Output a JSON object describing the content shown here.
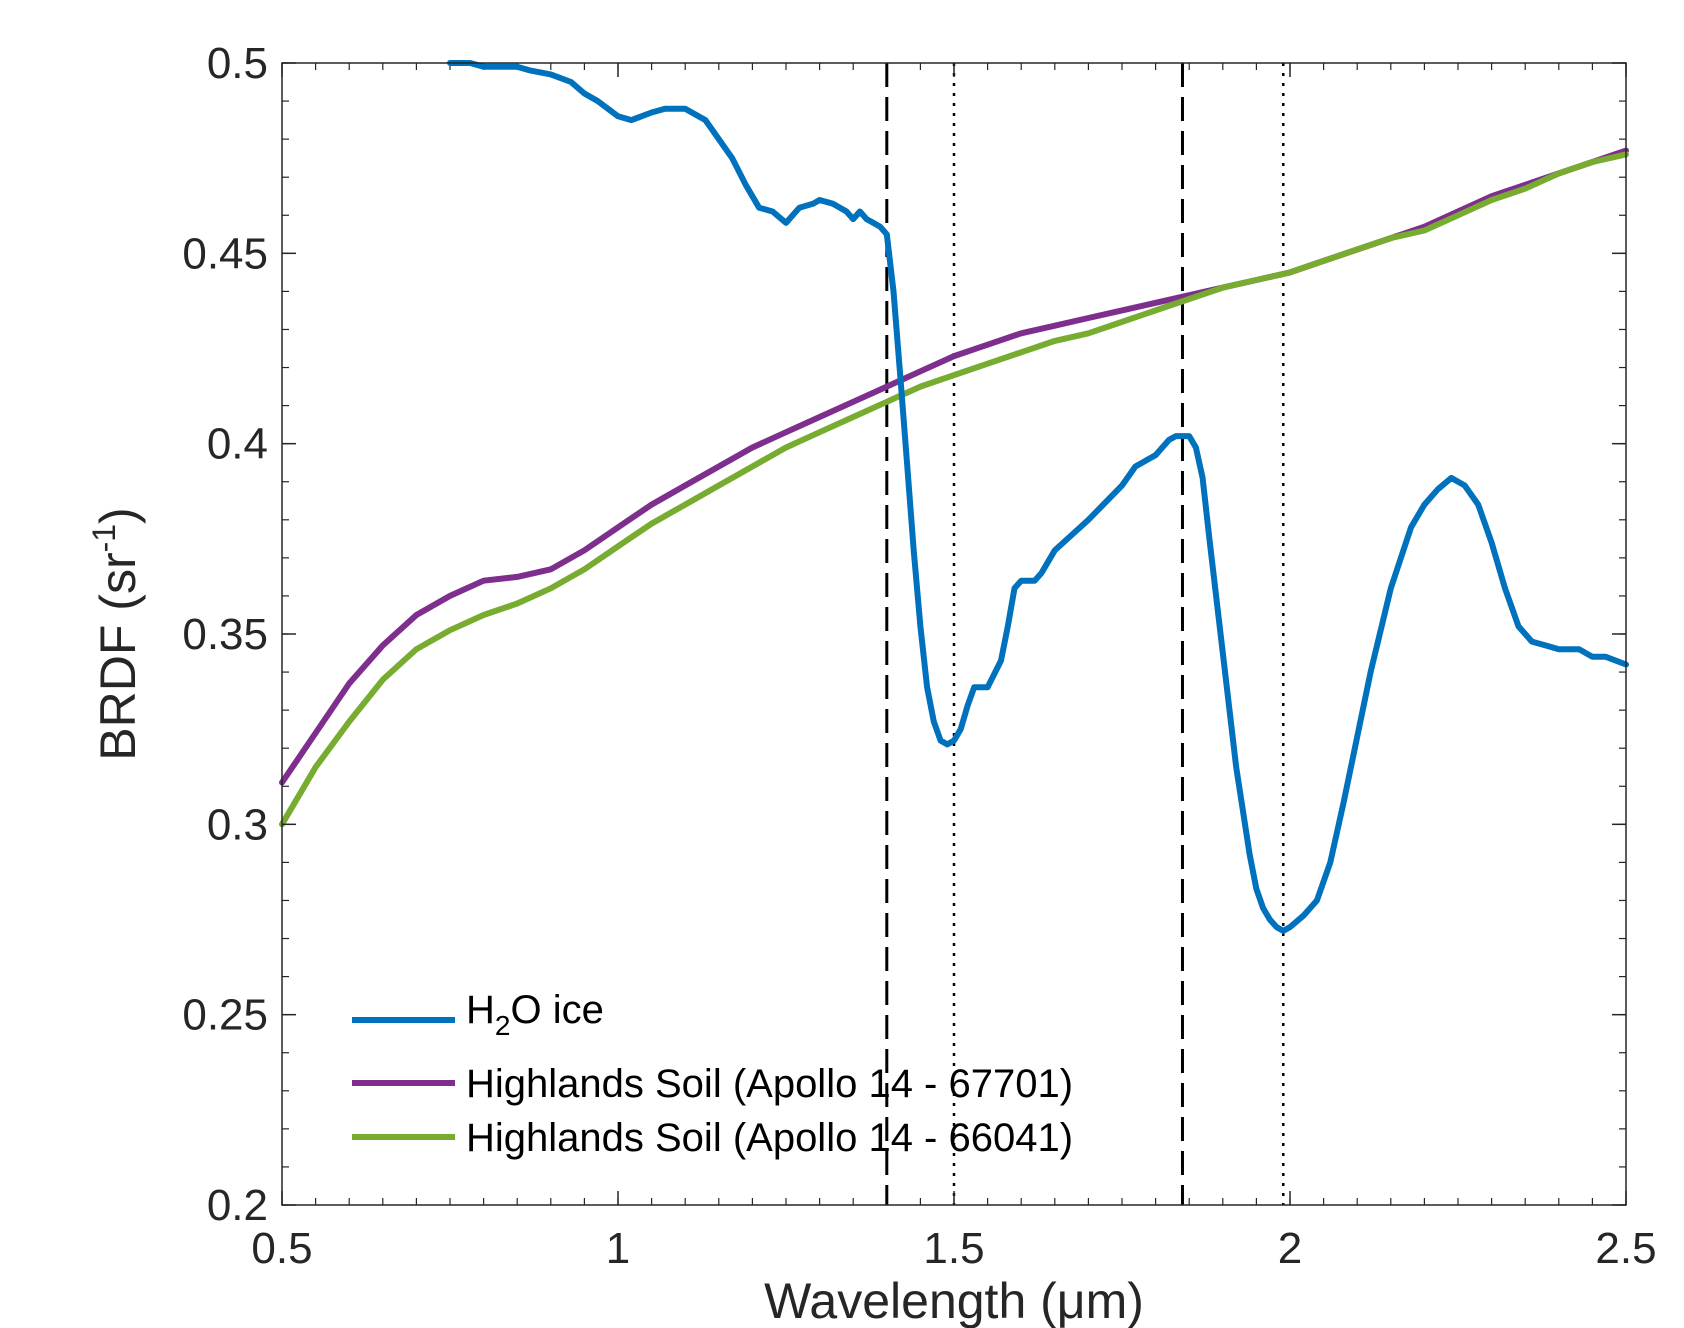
{
  "chart_data": {
    "type": "line",
    "xlabel": "Wavelength (μm)",
    "ylabel_main": "BRDF (sr",
    "ylabel_sup": "-1",
    "ylabel_close": ")",
    "xlim": [
      0.5,
      2.5
    ],
    "ylim": [
      0.2,
      0.5
    ],
    "xticks": [
      0.5,
      1,
      1.5,
      2,
      2.5
    ],
    "xtick_labels": [
      "0.5",
      "1",
      "1.5",
      "2",
      "2.5"
    ],
    "yticks": [
      0.2,
      0.25,
      0.3,
      0.35,
      0.4,
      0.45,
      0.5
    ],
    "ytick_labels": [
      "0.2",
      "0.25",
      "0.3",
      "0.35",
      "0.4",
      "0.45",
      "0.5"
    ],
    "grid": false,
    "legend_position": "bottom-left",
    "vlines": [
      {
        "x": 1.4,
        "style": "dashed"
      },
      {
        "x": 1.5,
        "style": "dotted"
      },
      {
        "x": 1.84,
        "style": "dashed"
      },
      {
        "x": 1.99,
        "style": "dotted"
      }
    ],
    "series": [
      {
        "name": "H2O ice",
        "legend_main": "H",
        "legend_sub": "2",
        "legend_rest": "O ice",
        "color": "#0072BD",
        "x": [
          0.75,
          0.78,
          0.8,
          0.85,
          0.87,
          0.9,
          0.93,
          0.95,
          0.97,
          1.0,
          1.02,
          1.05,
          1.07,
          1.1,
          1.13,
          1.15,
          1.17,
          1.19,
          1.21,
          1.23,
          1.25,
          1.27,
          1.29,
          1.3,
          1.32,
          1.34,
          1.35,
          1.36,
          1.37,
          1.38,
          1.39,
          1.4,
          1.41,
          1.42,
          1.43,
          1.44,
          1.45,
          1.46,
          1.47,
          1.48,
          1.49,
          1.5,
          1.51,
          1.52,
          1.53,
          1.55,
          1.57,
          1.58,
          1.59,
          1.6,
          1.62,
          1.63,
          1.64,
          1.65,
          1.7,
          1.75,
          1.77,
          1.8,
          1.82,
          1.83,
          1.84,
          1.85,
          1.86,
          1.87,
          1.88,
          1.9,
          1.92,
          1.94,
          1.95,
          1.96,
          1.97,
          1.98,
          1.99,
          2.0,
          2.02,
          2.04,
          2.06,
          2.08,
          2.1,
          2.12,
          2.15,
          2.18,
          2.2,
          2.22,
          2.24,
          2.25,
          2.26,
          2.28,
          2.3,
          2.32,
          2.34,
          2.36,
          2.38,
          2.4,
          2.43,
          2.45,
          2.47,
          2.5
        ],
        "values": [
          0.5,
          0.5,
          0.499,
          0.499,
          0.498,
          0.497,
          0.495,
          0.492,
          0.49,
          0.486,
          0.485,
          0.487,
          0.488,
          0.488,
          0.485,
          0.48,
          0.475,
          0.468,
          0.462,
          0.461,
          0.458,
          0.462,
          0.463,
          0.464,
          0.463,
          0.461,
          0.459,
          0.461,
          0.459,
          0.458,
          0.457,
          0.455,
          0.44,
          0.418,
          0.395,
          0.372,
          0.352,
          0.336,
          0.327,
          0.322,
          0.321,
          0.322,
          0.325,
          0.331,
          0.336,
          0.336,
          0.343,
          0.352,
          0.362,
          0.364,
          0.364,
          0.366,
          0.369,
          0.372,
          0.38,
          0.389,
          0.394,
          0.397,
          0.401,
          0.402,
          0.402,
          0.402,
          0.399,
          0.391,
          0.375,
          0.345,
          0.315,
          0.292,
          0.283,
          0.278,
          0.275,
          0.273,
          0.272,
          0.273,
          0.276,
          0.28,
          0.29,
          0.306,
          0.323,
          0.34,
          0.362,
          0.378,
          0.384,
          0.388,
          0.391,
          0.39,
          0.389,
          0.384,
          0.374,
          0.362,
          0.352,
          0.348,
          0.347,
          0.346,
          0.346,
          0.344,
          0.344,
          0.342
        ]
      },
      {
        "name": "Highlands Soil (Apollo 14 - 67701)",
        "color": "#7E2F8E",
        "x": [
          0.5,
          0.55,
          0.6,
          0.65,
          0.7,
          0.75,
          0.8,
          0.85,
          0.9,
          0.95,
          1.0,
          1.05,
          1.1,
          1.15,
          1.2,
          1.25,
          1.3,
          1.35,
          1.4,
          1.45,
          1.5,
          1.55,
          1.6,
          1.65,
          1.7,
          1.75,
          1.8,
          1.85,
          1.9,
          1.95,
          2.0,
          2.05,
          2.1,
          2.15,
          2.2,
          2.25,
          2.3,
          2.35,
          2.4,
          2.45,
          2.5
        ],
        "values": [
          0.311,
          0.324,
          0.337,
          0.347,
          0.355,
          0.36,
          0.364,
          0.365,
          0.367,
          0.372,
          0.378,
          0.384,
          0.389,
          0.394,
          0.399,
          0.403,
          0.407,
          0.411,
          0.415,
          0.419,
          0.423,
          0.426,
          0.429,
          0.431,
          0.433,
          0.435,
          0.437,
          0.439,
          0.441,
          0.443,
          0.445,
          0.448,
          0.451,
          0.454,
          0.457,
          0.461,
          0.465,
          0.468,
          0.471,
          0.474,
          0.477
        ]
      },
      {
        "name": "Highlands Soil (Apollo 14 - 66041)",
        "color": "#77AC30",
        "x": [
          0.5,
          0.55,
          0.6,
          0.65,
          0.7,
          0.75,
          0.8,
          0.85,
          0.9,
          0.95,
          1.0,
          1.05,
          1.1,
          1.15,
          1.2,
          1.25,
          1.3,
          1.35,
          1.4,
          1.45,
          1.5,
          1.55,
          1.6,
          1.65,
          1.7,
          1.75,
          1.8,
          1.85,
          1.9,
          1.95,
          2.0,
          2.05,
          2.1,
          2.15,
          2.2,
          2.25,
          2.3,
          2.35,
          2.4,
          2.45,
          2.5
        ],
        "values": [
          0.3,
          0.315,
          0.327,
          0.338,
          0.346,
          0.351,
          0.355,
          0.358,
          0.362,
          0.367,
          0.373,
          0.379,
          0.384,
          0.389,
          0.394,
          0.399,
          0.403,
          0.407,
          0.411,
          0.415,
          0.418,
          0.421,
          0.424,
          0.427,
          0.429,
          0.432,
          0.435,
          0.438,
          0.441,
          0.443,
          0.445,
          0.448,
          0.451,
          0.454,
          0.456,
          0.46,
          0.464,
          0.467,
          0.471,
          0.474,
          0.476
        ]
      }
    ]
  }
}
